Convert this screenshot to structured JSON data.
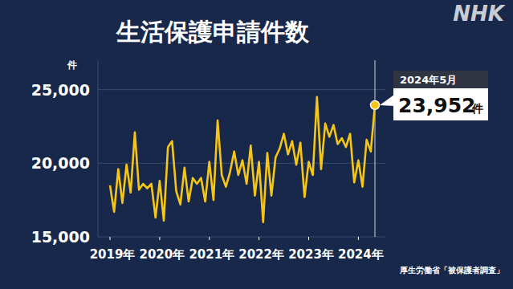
{
  "chart_data": {
    "type": "line",
    "title": "生活保護申請件数",
    "y_unit": "件",
    "source": "厚生労働省「被保護者調査」",
    "logo": "NHK",
    "color": "#f5c518",
    "grid": true,
    "marker": "none",
    "ylim": [
      15000,
      27000
    ],
    "yticks": [
      {
        "value": 15000,
        "label": "15,000"
      },
      {
        "value": 20000,
        "label": "20,000"
      },
      {
        "value": 25000,
        "label": "25,000"
      }
    ],
    "categories": [
      "2019年",
      null,
      null,
      null,
      null,
      null,
      null,
      null,
      null,
      null,
      null,
      null,
      "2020年",
      null,
      null,
      null,
      null,
      null,
      null,
      null,
      null,
      null,
      null,
      null,
      "2021年",
      null,
      null,
      null,
      null,
      null,
      null,
      null,
      null,
      null,
      null,
      null,
      "2022年",
      null,
      null,
      null,
      null,
      null,
      null,
      null,
      null,
      null,
      null,
      null,
      "2023年",
      null,
      null,
      null,
      null,
      null,
      null,
      null,
      null,
      null,
      null,
      null,
      "2024年",
      null,
      null,
      null,
      null
    ],
    "values": [
      18500,
      16700,
      19600,
      17300,
      19900,
      18000,
      22100,
      18200,
      18600,
      18300,
      18600,
      16300,
      18800,
      16100,
      21100,
      21500,
      18100,
      17200,
      19700,
      17400,
      19000,
      18600,
      19000,
      17400,
      20100,
      17500,
      22900,
      19200,
      18400,
      19400,
      20800,
      19200,
      20200,
      18600,
      21200,
      17800,
      20100,
      16000,
      20700,
      17800,
      20400,
      21000,
      22000,
      20600,
      21500,
      19900,
      21400,
      17700,
      20100,
      19200,
      24500,
      19600,
      22700,
      21800,
      22600,
      21300,
      21700,
      21100,
      22000,
      18700,
      20200,
      18400,
      21600,
      20800,
      23952
    ],
    "annotation": {
      "title": "2024年5月",
      "text": "23,952",
      "unit": "件"
    }
  }
}
